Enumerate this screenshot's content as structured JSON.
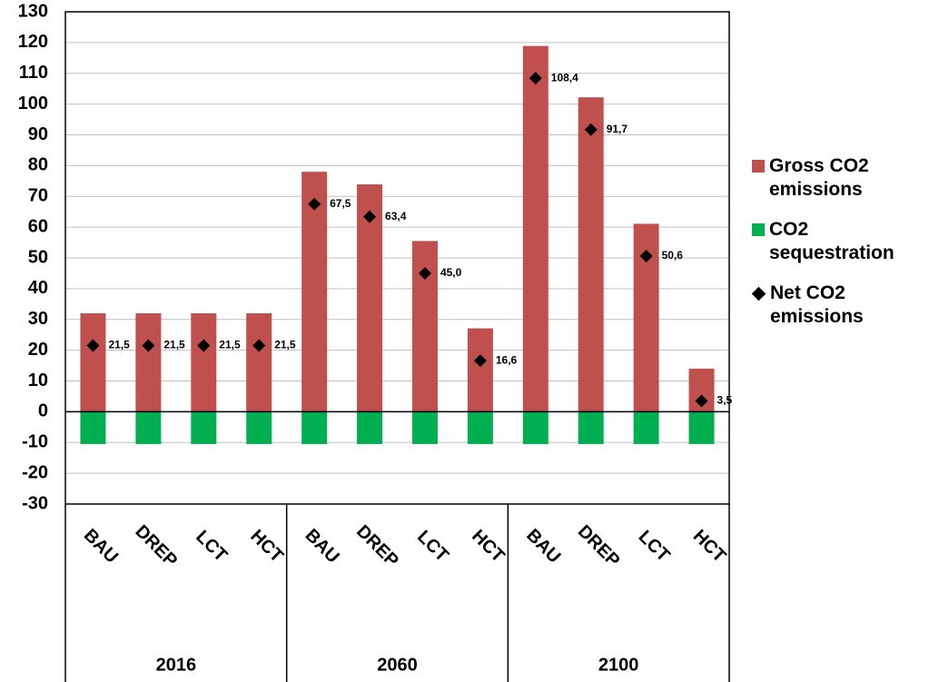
{
  "chart_data": {
    "type": "bar",
    "categories": [
      "BAU",
      "DREP",
      "LCT",
      "HCT",
      "BAU",
      "DREP",
      "LCT",
      "HCT",
      "BAU",
      "DREP",
      "LCT",
      "HCT"
    ],
    "groups": [
      "2016",
      "2060",
      "2100"
    ],
    "series": [
      {
        "name": "Gross CO2 emissions",
        "color": "#c0504d",
        "values": [
          32,
          32,
          32,
          32,
          78,
          73.9,
          55.5,
          27.1,
          118.9,
          102.2,
          61.1,
          14
        ]
      },
      {
        "name": "CO2 sequestration",
        "color": "#00b050",
        "values": [
          -10.5,
          -10.5,
          -10.5,
          -10.5,
          -10.5,
          -10.5,
          -10.5,
          -10.5,
          -10.5,
          -10.5,
          -10.5,
          -10.5
        ]
      },
      {
        "name": "Net CO2 emissions",
        "type": "marker",
        "color": "#000000",
        "values": [
          21.5,
          21.5,
          21.5,
          21.5,
          67.5,
          63.4,
          45.0,
          16.6,
          108.4,
          91.7,
          50.6,
          3.5
        ],
        "value_labels": [
          "21,5",
          "21,5",
          "21,5",
          "21,5",
          "67,5",
          "63,4",
          "45,0",
          "16,6",
          "108,4",
          "91,7",
          "50,6",
          "3,5"
        ]
      }
    ],
    "ylim": [
      -30,
      130
    ],
    "yticks": [
      -30,
      -20,
      -10,
      0,
      10,
      20,
      30,
      40,
      50,
      60,
      70,
      80,
      90,
      100,
      110,
      120,
      130
    ],
    "grid": true
  }
}
